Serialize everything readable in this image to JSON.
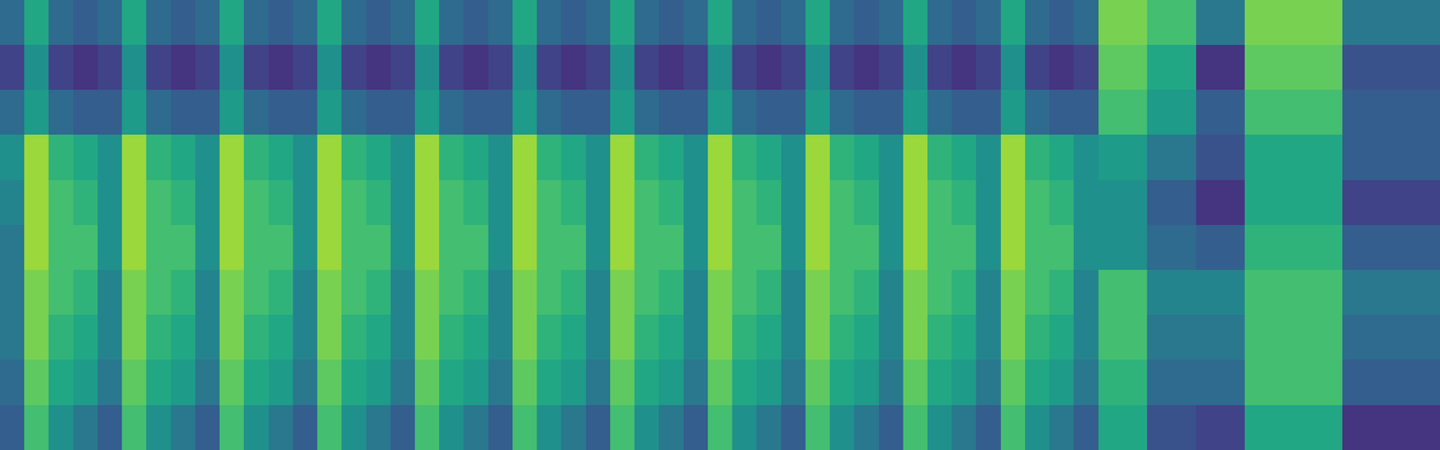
{
  "chart_data": {
    "type": "heatmap",
    "tick_labels": false,
    "color_range": [
      0,
      1
    ],
    "cells": [
      [
        0.35,
        0.6,
        0.35,
        0.3,
        0.35,
        0.6,
        0.35,
        0.3,
        0.35,
        0.6,
        0.35,
        0.3,
        0.35,
        0.6,
        0.35,
        0.3,
        0.35,
        0.6,
        0.35,
        0.3,
        0.35,
        0.6,
        0.35,
        0.3,
        0.35,
        0.6,
        0.35,
        0.3,
        0.35,
        0.6,
        0.35,
        0.3,
        0.35,
        0.6,
        0.35,
        0.3,
        0.35,
        0.6,
        0.35,
        0.3,
        0.35,
        0.6,
        0.35,
        0.3,
        0.35,
        0.8,
        0.8,
        0.7,
        0.7,
        0.4,
        0.4,
        0.8,
        0.8,
        0.8,
        0.8,
        0.4,
        0.4,
        0.4,
        0.4
      ],
      [
        0.2,
        0.5,
        0.2,
        0.15,
        0.2,
        0.5,
        0.2,
        0.15,
        0.2,
        0.5,
        0.2,
        0.15,
        0.2,
        0.5,
        0.2,
        0.15,
        0.2,
        0.5,
        0.2,
        0.15,
        0.2,
        0.5,
        0.2,
        0.15,
        0.2,
        0.5,
        0.2,
        0.15,
        0.2,
        0.5,
        0.2,
        0.15,
        0.2,
        0.5,
        0.2,
        0.15,
        0.2,
        0.5,
        0.2,
        0.15,
        0.2,
        0.5,
        0.2,
        0.15,
        0.2,
        0.75,
        0.75,
        0.6,
        0.6,
        0.15,
        0.15,
        0.75,
        0.75,
        0.75,
        0.75,
        0.25,
        0.25,
        0.25,
        0.25
      ],
      [
        0.35,
        0.55,
        0.35,
        0.3,
        0.3,
        0.55,
        0.35,
        0.3,
        0.3,
        0.55,
        0.35,
        0.3,
        0.3,
        0.55,
        0.35,
        0.3,
        0.3,
        0.55,
        0.35,
        0.3,
        0.3,
        0.55,
        0.35,
        0.3,
        0.3,
        0.55,
        0.35,
        0.3,
        0.3,
        0.55,
        0.35,
        0.3,
        0.3,
        0.55,
        0.35,
        0.3,
        0.3,
        0.55,
        0.35,
        0.3,
        0.3,
        0.55,
        0.35,
        0.3,
        0.3,
        0.7,
        0.7,
        0.55,
        0.55,
        0.3,
        0.3,
        0.7,
        0.7,
        0.7,
        0.7,
        0.3,
        0.3,
        0.3,
        0.3
      ],
      [
        0.5,
        0.85,
        0.65,
        0.6,
        0.5,
        0.85,
        0.65,
        0.6,
        0.5,
        0.85,
        0.65,
        0.6,
        0.5,
        0.85,
        0.65,
        0.6,
        0.5,
        0.85,
        0.65,
        0.6,
        0.5,
        0.85,
        0.65,
        0.6,
        0.5,
        0.85,
        0.65,
        0.6,
        0.5,
        0.85,
        0.65,
        0.6,
        0.5,
        0.85,
        0.65,
        0.6,
        0.5,
        0.85,
        0.65,
        0.6,
        0.5,
        0.85,
        0.65,
        0.6,
        0.5,
        0.55,
        0.55,
        0.4,
        0.4,
        0.25,
        0.25,
        0.6,
        0.6,
        0.6,
        0.6,
        0.3,
        0.3,
        0.3,
        0.3
      ],
      [
        0.45,
        0.85,
        0.7,
        0.65,
        0.5,
        0.85,
        0.7,
        0.65,
        0.5,
        0.85,
        0.7,
        0.65,
        0.5,
        0.85,
        0.7,
        0.65,
        0.5,
        0.85,
        0.7,
        0.65,
        0.5,
        0.85,
        0.7,
        0.65,
        0.5,
        0.85,
        0.7,
        0.65,
        0.5,
        0.85,
        0.7,
        0.65,
        0.5,
        0.85,
        0.7,
        0.65,
        0.5,
        0.85,
        0.7,
        0.65,
        0.5,
        0.85,
        0.7,
        0.65,
        0.5,
        0.5,
        0.5,
        0.3,
        0.3,
        0.15,
        0.15,
        0.6,
        0.6,
        0.6,
        0.6,
        0.2,
        0.2,
        0.2,
        0.2
      ],
      [
        0.4,
        0.85,
        0.7,
        0.7,
        0.5,
        0.85,
        0.7,
        0.7,
        0.5,
        0.85,
        0.7,
        0.7,
        0.5,
        0.85,
        0.7,
        0.7,
        0.5,
        0.85,
        0.7,
        0.7,
        0.5,
        0.85,
        0.7,
        0.7,
        0.5,
        0.85,
        0.7,
        0.7,
        0.5,
        0.85,
        0.7,
        0.7,
        0.5,
        0.85,
        0.7,
        0.7,
        0.5,
        0.85,
        0.7,
        0.7,
        0.5,
        0.85,
        0.7,
        0.7,
        0.5,
        0.5,
        0.5,
        0.35,
        0.35,
        0.3,
        0.3,
        0.65,
        0.65,
        0.65,
        0.65,
        0.3,
        0.3,
        0.3,
        0.3
      ],
      [
        0.4,
        0.8,
        0.7,
        0.65,
        0.45,
        0.8,
        0.7,
        0.65,
        0.45,
        0.8,
        0.7,
        0.65,
        0.45,
        0.8,
        0.7,
        0.65,
        0.45,
        0.8,
        0.7,
        0.65,
        0.45,
        0.8,
        0.7,
        0.65,
        0.45,
        0.8,
        0.7,
        0.65,
        0.45,
        0.8,
        0.7,
        0.65,
        0.45,
        0.8,
        0.7,
        0.65,
        0.45,
        0.8,
        0.7,
        0.65,
        0.45,
        0.8,
        0.7,
        0.65,
        0.45,
        0.7,
        0.7,
        0.45,
        0.45,
        0.45,
        0.45,
        0.7,
        0.7,
        0.7,
        0.7,
        0.4,
        0.4,
        0.4,
        0.4
      ],
      [
        0.4,
        0.8,
        0.65,
        0.6,
        0.45,
        0.8,
        0.65,
        0.6,
        0.45,
        0.8,
        0.65,
        0.6,
        0.45,
        0.8,
        0.65,
        0.6,
        0.45,
        0.8,
        0.65,
        0.6,
        0.45,
        0.8,
        0.65,
        0.6,
        0.45,
        0.8,
        0.65,
        0.6,
        0.45,
        0.8,
        0.65,
        0.6,
        0.45,
        0.8,
        0.65,
        0.6,
        0.45,
        0.8,
        0.65,
        0.6,
        0.45,
        0.8,
        0.65,
        0.6,
        0.45,
        0.7,
        0.7,
        0.4,
        0.4,
        0.4,
        0.4,
        0.7,
        0.7,
        0.7,
        0.7,
        0.35,
        0.35,
        0.35,
        0.35
      ],
      [
        0.35,
        0.75,
        0.6,
        0.55,
        0.4,
        0.75,
        0.6,
        0.55,
        0.4,
        0.75,
        0.6,
        0.55,
        0.4,
        0.75,
        0.6,
        0.55,
        0.4,
        0.75,
        0.6,
        0.55,
        0.4,
        0.75,
        0.6,
        0.55,
        0.4,
        0.75,
        0.6,
        0.55,
        0.4,
        0.75,
        0.6,
        0.55,
        0.4,
        0.75,
        0.6,
        0.55,
        0.4,
        0.75,
        0.6,
        0.55,
        0.4,
        0.75,
        0.6,
        0.55,
        0.4,
        0.65,
        0.65,
        0.35,
        0.35,
        0.35,
        0.35,
        0.7,
        0.7,
        0.7,
        0.7,
        0.3,
        0.3,
        0.3,
        0.3
      ],
      [
        0.3,
        0.7,
        0.5,
        0.4,
        0.3,
        0.7,
        0.5,
        0.4,
        0.3,
        0.7,
        0.5,
        0.4,
        0.3,
        0.7,
        0.5,
        0.4,
        0.3,
        0.7,
        0.5,
        0.4,
        0.3,
        0.7,
        0.5,
        0.4,
        0.3,
        0.7,
        0.5,
        0.4,
        0.3,
        0.7,
        0.5,
        0.4,
        0.3,
        0.7,
        0.5,
        0.4,
        0.3,
        0.7,
        0.5,
        0.4,
        0.3,
        0.7,
        0.5,
        0.4,
        0.3,
        0.6,
        0.6,
        0.25,
        0.25,
        0.2,
        0.2,
        0.6,
        0.6,
        0.6,
        0.6,
        0.15,
        0.15,
        0.15,
        0.15
      ]
    ]
  }
}
